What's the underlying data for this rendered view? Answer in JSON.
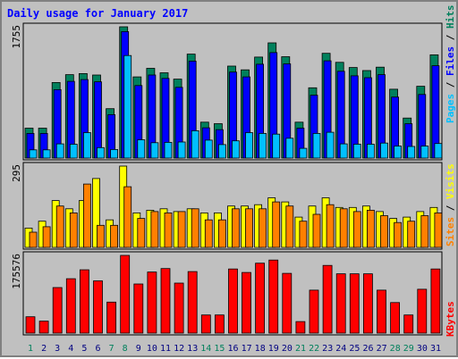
{
  "chart_data": [
    {
      "type": "bar",
      "title": "Daily usage for January 2017",
      "ylabel": "Pages / Files / Hits",
      "y_max_label": "1755",
      "ylim": [
        0,
        1755
      ],
      "categories": [
        "1",
        "2",
        "3",
        "4",
        "5",
        "6",
        "7",
        "8",
        "9",
        "10",
        "11",
        "12",
        "13",
        "14",
        "15",
        "16",
        "17",
        "18",
        "19",
        "20",
        "21",
        "22",
        "23",
        "24",
        "25",
        "26",
        "27",
        "28",
        "29",
        "30",
        "31"
      ],
      "weekend_days": [
        "1",
        "7",
        "8",
        "14",
        "15",
        "21",
        "22",
        "28",
        "29"
      ],
      "series": [
        {
          "name": "Hits",
          "color": "#00805c",
          "values": [
            400,
            400,
            1010,
            1115,
            1130,
            1110,
            660,
            1755,
            1085,
            1200,
            1140,
            1055,
            1390,
            480,
            460,
            1230,
            1180,
            1350,
            1540,
            1355,
            480,
            940,
            1400,
            1280,
            1210,
            1170,
            1215,
            920,
            535,
            960,
            1380
          ]
        },
        {
          "name": "Files",
          "color": "#0000ff",
          "values": [
            330,
            330,
            915,
            1025,
            1050,
            1020,
            580,
            1690,
            970,
            1110,
            1065,
            945,
            1295,
            405,
            380,
            1150,
            1085,
            1255,
            1410,
            1260,
            400,
            840,
            1300,
            1160,
            1100,
            1075,
            1115,
            815,
            460,
            850,
            1235
          ]
        },
        {
          "name": "Pages",
          "color": "#00c0ff",
          "values": [
            110,
            110,
            190,
            185,
            340,
            140,
            115,
            1370,
            245,
            205,
            210,
            215,
            365,
            240,
            180,
            230,
            340,
            330,
            320,
            265,
            130,
            330,
            345,
            190,
            185,
            185,
            200,
            160,
            155,
            160,
            195
          ]
        }
      ]
    },
    {
      "type": "bar",
      "ylabel": "Sites / Visits",
      "y_max_label": "295",
      "ylim": [
        0,
        295
      ],
      "categories": [
        "1",
        "2",
        "3",
        "4",
        "5",
        "6",
        "7",
        "8",
        "9",
        "10",
        "11",
        "12",
        "13",
        "14",
        "15",
        "16",
        "17",
        "18",
        "19",
        "20",
        "21",
        "22",
        "23",
        "24",
        "25",
        "26",
        "27",
        "28",
        "29",
        "30",
        "31"
      ],
      "series": [
        {
          "name": "Visits",
          "color": "#ffff00",
          "values": [
            70,
            95,
            170,
            140,
            170,
            250,
            100,
            295,
            125,
            135,
            140,
            130,
            140,
            125,
            125,
            150,
            150,
            155,
            180,
            165,
            110,
            150,
            180,
            145,
            145,
            150,
            130,
            105,
            110,
            130,
            145
          ]
        },
        {
          "name": "Sites",
          "color": "#ff8000",
          "values": [
            55,
            75,
            150,
            125,
            230,
            80,
            80,
            220,
            105,
            130,
            125,
            130,
            140,
            100,
            100,
            140,
            140,
            140,
            165,
            150,
            95,
            120,
            155,
            140,
            130,
            135,
            115,
            90,
            95,
            115,
            125
          ]
        }
      ]
    },
    {
      "type": "bar",
      "ylabel": "KBytes",
      "y_max_label": "175576",
      "ylim": [
        0,
        175576
      ],
      "categories": [
        "1",
        "2",
        "3",
        "4",
        "5",
        "6",
        "7",
        "8",
        "9",
        "10",
        "11",
        "12",
        "13",
        "14",
        "15",
        "16",
        "17",
        "18",
        "19",
        "20",
        "21",
        "22",
        "23",
        "24",
        "25",
        "26",
        "27",
        "28",
        "29",
        "30",
        "31"
      ],
      "series": [
        {
          "name": "KBytes",
          "color": "#ff0000",
          "values": [
            37000,
            27000,
            103000,
            123000,
            143000,
            118000,
            70000,
            175576,
            111000,
            138000,
            146000,
            113000,
            139000,
            41000,
            41000,
            145000,
            137000,
            158000,
            165000,
            135000,
            26000,
            97000,
            153000,
            134000,
            134000,
            134000,
            97000,
            69000,
            41000,
            99000,
            145000
          ]
        }
      ]
    }
  ],
  "colors": {
    "background": "#c0c0c0",
    "title": "#0000ff",
    "axis_label": "#000000",
    "weekday_label": "#000080",
    "weekend_label": "#00805c",
    "hits": "#00805c",
    "files": "#0000ff",
    "pages": "#00c0ff",
    "visits": "#ffff00",
    "sites": "#ff8000",
    "kbytes": "#ff0000"
  }
}
